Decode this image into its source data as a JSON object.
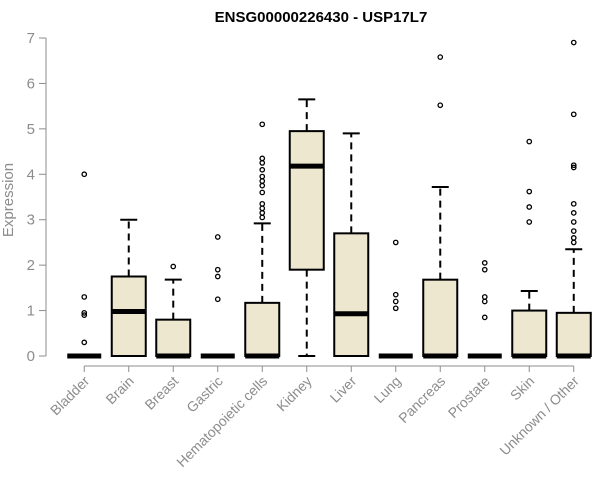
{
  "chart_data": {
    "type": "box",
    "title": "ENSG00000226430 - USP17L7",
    "xlabel": "",
    "ylabel": "Expression",
    "ylim": [
      0,
      7
    ],
    "yticks": [
      0,
      1,
      2,
      3,
      4,
      5,
      6,
      7
    ],
    "box_fill": "#ede7cf",
    "categories": [
      "Bladder",
      "Brain",
      "Breast",
      "Gastric",
      "Hematopoietic cells",
      "Kidney",
      "Liver",
      "Lung",
      "Pancreas",
      "Prostate",
      "Skin",
      "Unknown / Other"
    ],
    "boxes": [
      {
        "q1": 0,
        "median": 0,
        "q3": 0,
        "whisker_low": 0,
        "whisker_high": 0,
        "outliers": [
          4.0,
          1.3,
          0.95,
          0.9,
          0.3
        ]
      },
      {
        "q1": 0,
        "median": 0.98,
        "q3": 1.75,
        "whisker_low": 0,
        "whisker_high": 3.0,
        "outliers": []
      },
      {
        "q1": 0,
        "median": 0,
        "q3": 0.8,
        "whisker_low": 0,
        "whisker_high": 1.68,
        "outliers": [
          1.97
        ]
      },
      {
        "q1": 0,
        "median": 0,
        "q3": 0,
        "whisker_low": 0,
        "whisker_high": 0,
        "outliers": [
          2.62,
          1.9,
          1.75,
          1.25
        ]
      },
      {
        "q1": 0,
        "median": 0,
        "q3": 1.17,
        "whisker_low": 0,
        "whisker_high": 2.92,
        "outliers": [
          5.1,
          4.35,
          4.25,
          4.1,
          3.95,
          3.85,
          3.75,
          3.6,
          3.35,
          3.25,
          3.15,
          3.05
        ]
      },
      {
        "q1": 1.9,
        "median": 4.18,
        "q3": 4.95,
        "whisker_low": 0,
        "whisker_high": 5.65,
        "outliers": []
      },
      {
        "q1": 0,
        "median": 0.93,
        "q3": 2.7,
        "whisker_low": 0,
        "whisker_high": 4.9,
        "outliers": []
      },
      {
        "q1": 0,
        "median": 0,
        "q3": 0,
        "whisker_low": 0,
        "whisker_high": 0,
        "outliers": [
          2.5,
          1.35,
          1.2,
          1.05
        ]
      },
      {
        "q1": 0,
        "median": 0,
        "q3": 1.68,
        "whisker_low": 0,
        "whisker_high": 3.72,
        "outliers": [
          6.58,
          5.52
        ]
      },
      {
        "q1": 0,
        "median": 0,
        "q3": 0,
        "whisker_low": 0,
        "whisker_high": 0,
        "outliers": [
          2.05,
          1.9,
          1.3,
          1.2,
          0.85
        ]
      },
      {
        "q1": 0,
        "median": 0,
        "q3": 1.0,
        "whisker_low": 0,
        "whisker_high": 1.43,
        "outliers": [
          4.72,
          3.62,
          3.28,
          2.95
        ]
      },
      {
        "q1": 0,
        "median": 0,
        "q3": 0.95,
        "whisker_low": 0,
        "whisker_high": 2.35,
        "outliers": [
          6.9,
          5.32,
          4.2,
          4.15,
          3.35,
          3.15,
          2.95,
          2.75,
          2.6,
          2.5
        ]
      }
    ]
  }
}
